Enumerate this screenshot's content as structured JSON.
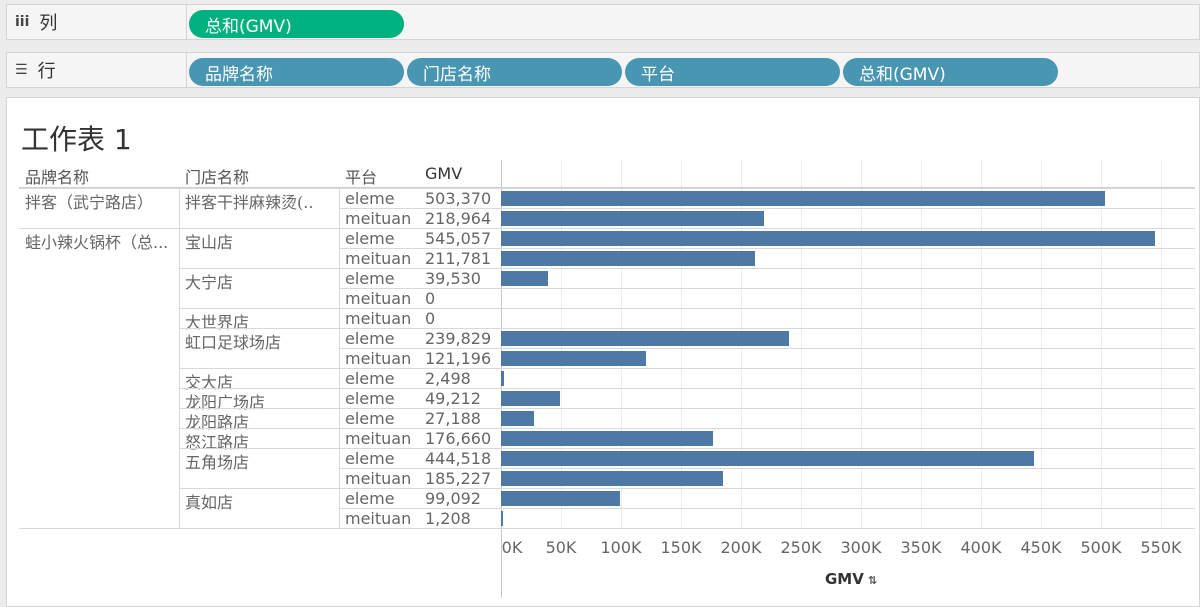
{
  "shelves": {
    "columns": {
      "label": "列",
      "icon": "columns-icon",
      "pills": [
        "总和(GMV)"
      ]
    },
    "rows": {
      "label": "行",
      "icon": "rows-icon",
      "pills": [
        "品牌名称",
        "门店名称",
        "平台",
        "总和(GMV)"
      ]
    }
  },
  "sheet": {
    "title": "工作表 1",
    "headers": {
      "brand": "品牌名称",
      "store": "门店名称",
      "platform": "平台",
      "gmv": "GMV"
    },
    "brands": [
      "拌客（武宁路店）",
      "蛙小辣火锅杯（总..."
    ],
    "stores": [
      "拌客干拌麻辣烫(..",
      "宝山店",
      "大宁店",
      "大世界店",
      "虹口足球场店",
      "交大店",
      "龙阳广场店",
      "龙阳路店",
      "怒江路店",
      "五角场店",
      "真如店"
    ],
    "axis": {
      "title": "GMV",
      "ticks": [
        "0K",
        "50K",
        "100K",
        "150K",
        "200K",
        "250K",
        "300K",
        "350K",
        "400K",
        "450K",
        "500K",
        "550K"
      ]
    }
  },
  "chart_data": {
    "type": "bar",
    "orientation": "horizontal",
    "xlabel": "GMV",
    "xlim": [
      0,
      550000
    ],
    "rows": [
      {
        "brand": "拌客（武宁路店）",
        "store": "拌客干拌麻辣烫(..",
        "platform": "eleme",
        "label": "503,370",
        "value": 503370
      },
      {
        "brand": "拌客（武宁路店）",
        "store": "拌客干拌麻辣烫(..",
        "platform": "meituan",
        "label": "218,964",
        "value": 218964
      },
      {
        "brand": "蛙小辣火锅杯（总...",
        "store": "宝山店",
        "platform": "eleme",
        "label": "545,057",
        "value": 545057
      },
      {
        "brand": "蛙小辣火锅杯（总...",
        "store": "宝山店",
        "platform": "meituan",
        "label": "211,781",
        "value": 211781
      },
      {
        "brand": "蛙小辣火锅杯（总...",
        "store": "大宁店",
        "platform": "eleme",
        "label": "39,530",
        "value": 39530
      },
      {
        "brand": "蛙小辣火锅杯（总...",
        "store": "大宁店",
        "platform": "meituan",
        "label": "0",
        "value": 0
      },
      {
        "brand": "蛙小辣火锅杯（总...",
        "store": "大世界店",
        "platform": "meituan",
        "label": "0",
        "value": 0
      },
      {
        "brand": "蛙小辣火锅杯（总...",
        "store": "虹口足球场店",
        "platform": "eleme",
        "label": "239,829",
        "value": 239829
      },
      {
        "brand": "蛙小辣火锅杯（总...",
        "store": "虹口足球场店",
        "platform": "meituan",
        "label": "121,196",
        "value": 121196
      },
      {
        "brand": "蛙小辣火锅杯（总...",
        "store": "交大店",
        "platform": "eleme",
        "label": "2,498",
        "value": 2498
      },
      {
        "brand": "蛙小辣火锅杯（总...",
        "store": "龙阳广场店",
        "platform": "eleme",
        "label": "49,212",
        "value": 49212
      },
      {
        "brand": "蛙小辣火锅杯（总...",
        "store": "龙阳路店",
        "platform": "eleme",
        "label": "27,188",
        "value": 27188
      },
      {
        "brand": "蛙小辣火锅杯（总...",
        "store": "怒江路店",
        "platform": "meituan",
        "label": "176,660",
        "value": 176660
      },
      {
        "brand": "蛙小辣火锅杯（总...",
        "store": "五角场店",
        "platform": "eleme",
        "label": "444,518",
        "value": 444518
      },
      {
        "brand": "蛙小辣火锅杯（总...",
        "store": "五角场店",
        "platform": "meituan",
        "label": "185,227",
        "value": 185227
      },
      {
        "brand": "蛙小辣火锅杯（总...",
        "store": "真如店",
        "platform": "eleme",
        "label": "99,092",
        "value": 99092
      },
      {
        "brand": "蛙小辣火锅杯（总...",
        "store": "真如店",
        "platform": "meituan",
        "label": "1,208",
        "value": 1208
      }
    ],
    "bar_color": "#4e79a7",
    "grid": true
  }
}
